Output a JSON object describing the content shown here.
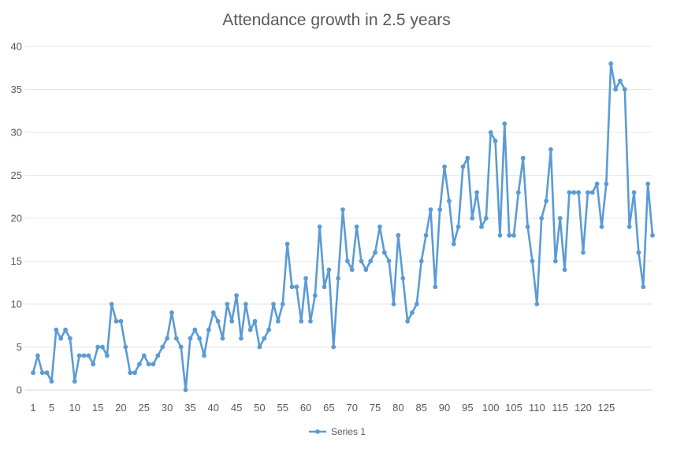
{
  "chart_data": {
    "type": "line",
    "title": "Attendance growth in 2.5 years",
    "xlabel": "",
    "ylabel": "",
    "ylim": [
      0,
      40
    ],
    "yticks": [
      0,
      5,
      10,
      15,
      20,
      25,
      30,
      35,
      40
    ],
    "xticks": [
      1,
      5,
      10,
      15,
      20,
      25,
      30,
      35,
      40,
      45,
      50,
      55,
      60,
      65,
      70,
      75,
      80,
      85,
      90,
      95,
      100,
      105,
      110,
      115,
      120,
      125
    ],
    "grid": "horizontal",
    "legend": "bottom",
    "color": "#5b9bd5",
    "series": [
      {
        "name": "Series 1",
        "values": [
          2,
          4,
          2,
          2,
          1,
          7,
          6,
          7,
          6,
          1,
          4,
          4,
          4,
          3,
          5,
          5,
          4,
          10,
          8,
          8,
          5,
          2,
          2,
          3,
          4,
          3,
          3,
          4,
          5,
          6,
          9,
          6,
          5,
          0,
          6,
          7,
          6,
          4,
          7,
          9,
          8,
          6,
          10,
          8,
          11,
          6,
          10,
          7,
          8,
          5,
          6,
          7,
          10,
          8,
          10,
          17,
          12,
          12,
          8,
          13,
          8,
          11,
          19,
          12,
          14,
          5,
          13,
          21,
          15,
          14,
          19,
          15,
          14,
          15,
          16,
          19,
          16,
          15,
          10,
          18,
          13,
          8,
          9,
          10,
          15,
          18,
          21,
          12,
          21,
          26,
          22,
          17,
          19,
          26,
          27,
          20,
          23,
          19,
          20,
          30,
          29,
          18,
          31,
          18,
          18,
          23,
          27,
          19,
          15,
          10,
          20,
          22,
          28,
          15,
          20,
          14,
          23,
          23,
          23,
          16,
          23,
          23,
          24,
          19,
          24,
          38,
          35,
          36,
          35,
          19,
          23,
          16,
          12,
          24,
          18
        ]
      }
    ]
  }
}
